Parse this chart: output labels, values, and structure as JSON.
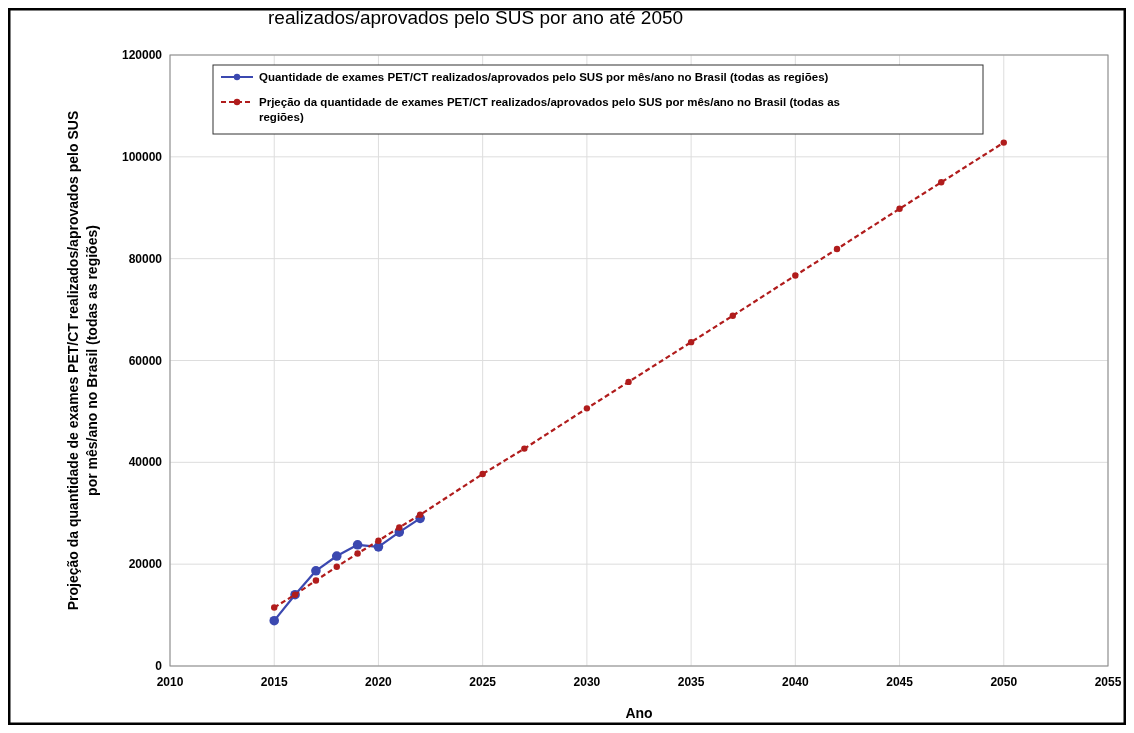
{
  "chart_data": {
    "type": "line",
    "title": "realizados/aprovados pelo SUS por ano até 2050",
    "xlabel": "Ano",
    "ylabel": "Projeção da quantidade de exames PET/CT realizados/aprovados pelo SUS por mês/ano no Brasil (todas as regiões)",
    "xlim": [
      2010,
      2055
    ],
    "xticks": [
      2010,
      2015,
      2020,
      2025,
      2030,
      2035,
      2040,
      2045,
      2050,
      2055
    ],
    "ylim": [
      0,
      120000
    ],
    "yticks": [
      0,
      20000,
      40000,
      60000,
      80000,
      100000,
      120000
    ],
    "grid": true,
    "legend": "top",
    "marker": "circle",
    "series": [
      {
        "name": "Quantidade de exames PET/CT realizados/aprovados pelo SUS por mês/ano no Brasil (todas as regiões)",
        "color": "#3b48b0",
        "line_style": "solid",
        "x": [
          2015,
          2016,
          2017,
          2018,
          2019,
          2020,
          2021,
          2022
        ],
        "values": [
          8900,
          14000,
          18700,
          21600,
          23800,
          23400,
          26300,
          29000
        ]
      },
      {
        "name": "Prjeção da quantidade de exames PET/CT realizados/aprovados pelo SUS por mês/ano no Brasil (todas as regiões)",
        "color": "#b01c1c",
        "line_style": "dashed",
        "x": [
          2015,
          2016,
          2017,
          2018,
          2019,
          2020,
          2021,
          2022,
          2025,
          2027,
          2030,
          2032,
          2035,
          2037,
          2040,
          2042,
          2045,
          2047,
          2050
        ],
        "values": [
          11500,
          14000,
          16800,
          19500,
          22100,
          24600,
          27200,
          29700,
          37700,
          42700,
          50600,
          55800,
          63600,
          68800,
          76700,
          81900,
          89800,
          95000,
          102800
        ]
      }
    ]
  }
}
